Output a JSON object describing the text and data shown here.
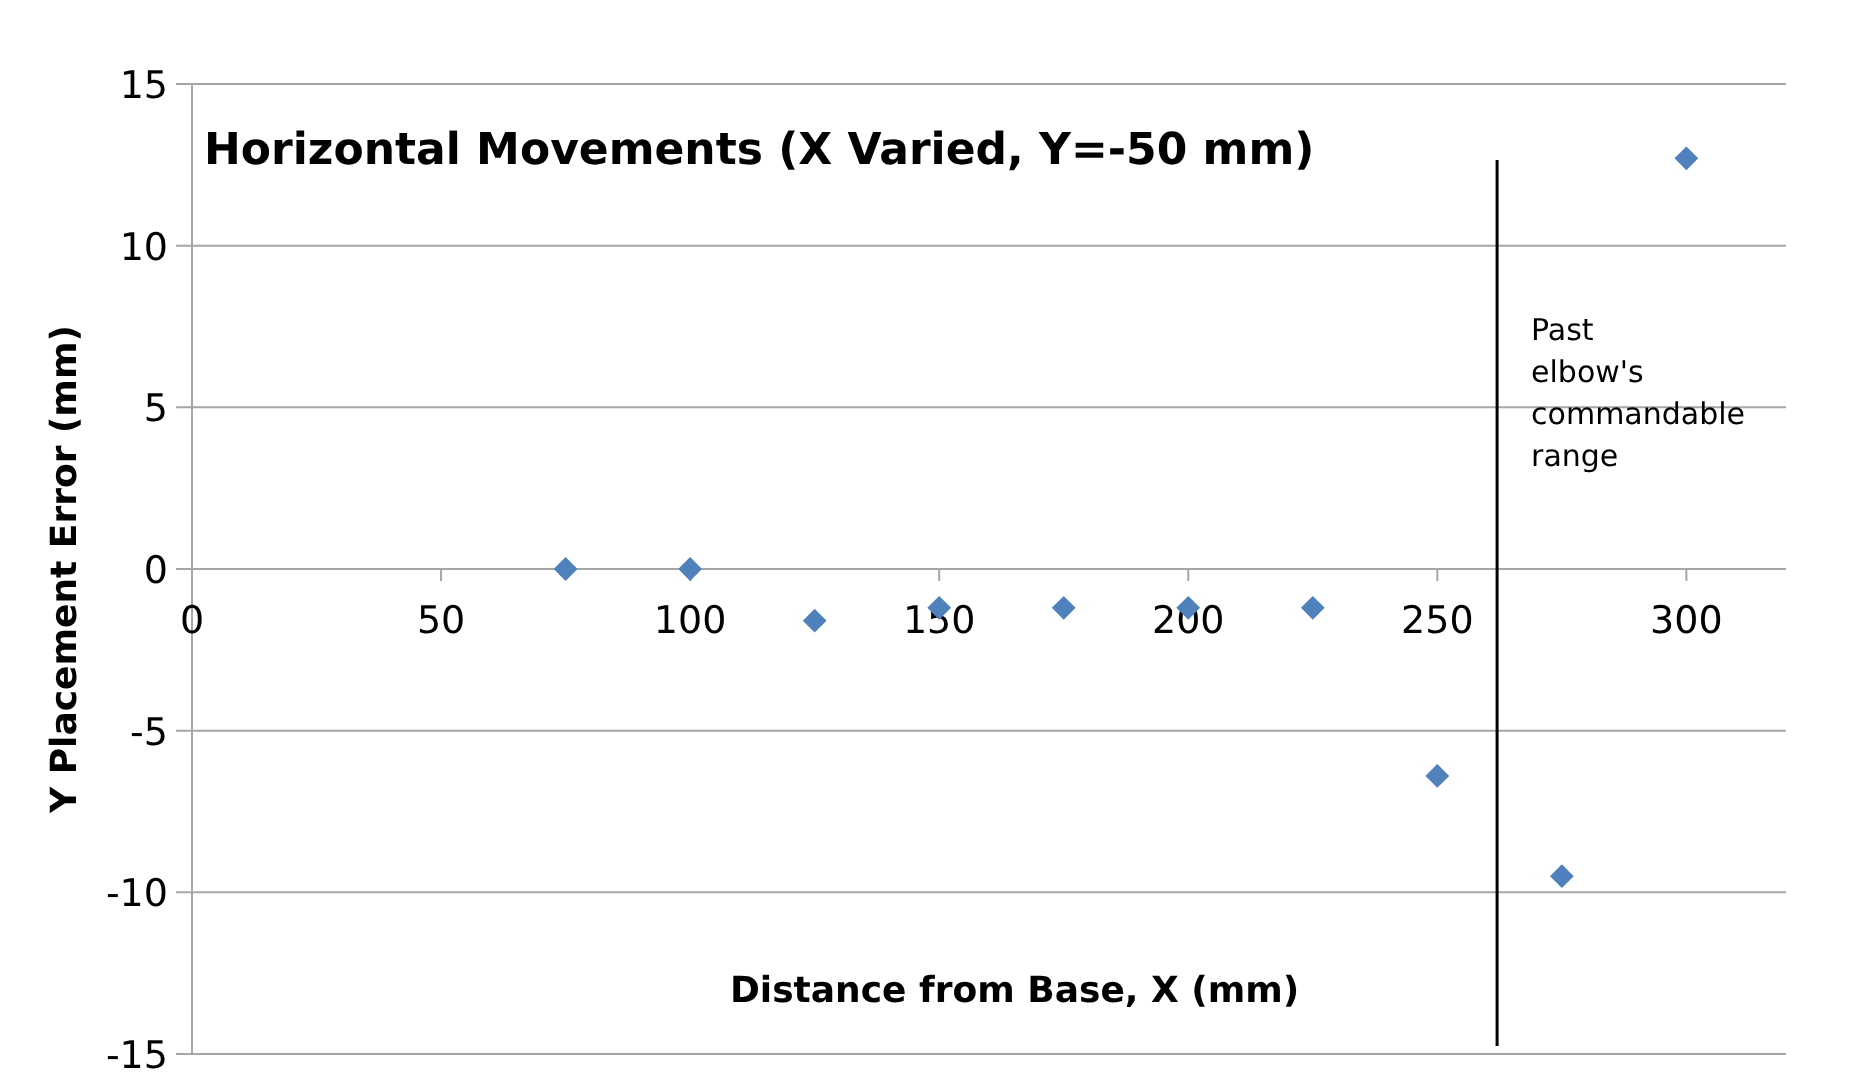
{
  "chart_data": {
    "type": "scatter",
    "title": "Horizontal Movements (X Varied, Y=-50 mm)",
    "xlabel": "Distance from Base, X (mm)",
    "ylabel": "Y Placement Error (mm)",
    "x": [
      75,
      100,
      125,
      150,
      175,
      200,
      225,
      250,
      275,
      300
    ],
    "series": [
      {
        "color": "#4f81bd",
        "values": [
          0,
          0,
          -1.6,
          -1.2,
          -1.2,
          -1.2,
          -1.2,
          -6.4,
          -9.5,
          12.7
        ]
      }
    ],
    "xlim": [
      0,
      320
    ],
    "xticks": [
      0,
      50,
      100,
      150,
      200,
      250,
      300
    ],
    "ylim": [
      -15,
      15
    ],
    "yticks": [
      -15,
      -10,
      -5,
      0,
      5,
      10,
      15
    ],
    "grid": "y",
    "marker": "diamond",
    "ref_lines": [
      {
        "axis": "x",
        "value": 262,
        "label": "Past elbow's commandable range",
        "color": "#000000"
      }
    ]
  }
}
